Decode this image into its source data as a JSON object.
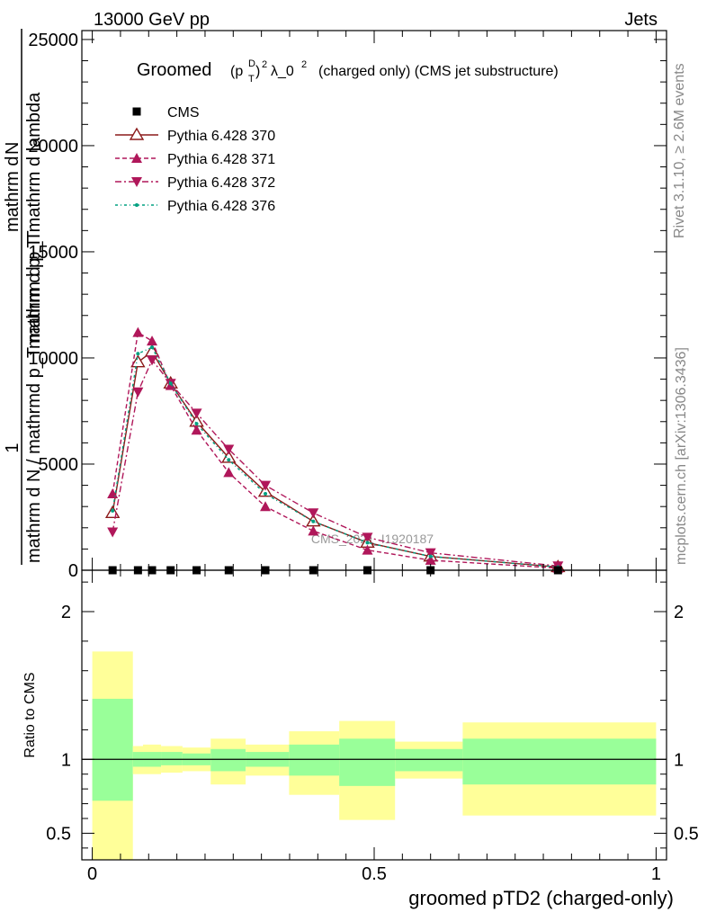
{
  "header": {
    "energy_label": "13000 GeV pp",
    "process_label": "Jets"
  },
  "side_labels": {
    "rivet": "Rivet 3.1.10, ≥ 2.6M events",
    "mcplots": "mcplots.cern.ch [arXiv:1306.3436]"
  },
  "watermark": "CMS_2021_I1920187",
  "chart_data": [
    {
      "type": "line",
      "title_parts": {
        "prefix": "Groomed",
        "p": "(p",
        "sup": "D",
        "sub": "T",
        "close": ")",
        "sq": "2",
        "lam": "λ_0",
        "lamsq": "2",
        "suffix": "(charged only) (CMS jet substructure)"
      },
      "ylabel_parts": {
        "one": "1",
        "den": "mathrm d N / mathrmd p_T mathrm d p_T",
        "num": "mathrm d",
        "num2": "N",
        "den2": "mathrm d p_T mathrm d lambda"
      },
      "xlim": [
        0,
        1
      ],
      "ylim": [
        0,
        25000
      ],
      "yticks": [
        {
          "v": 0,
          "label": "0"
        },
        {
          "v": 5000,
          "label": "5000"
        },
        {
          "v": 10000,
          "label": "10000"
        },
        {
          "v": 15000,
          "label": "15000"
        },
        {
          "v": 20000,
          "label": "20000"
        },
        {
          "v": 25000,
          "label": "25000"
        }
      ],
      "legend_position": "top-left",
      "x": [
        0.036,
        0.081,
        0.106,
        0.139,
        0.185,
        0.242,
        0.307,
        0.392,
        0.488,
        0.6,
        0.826
      ],
      "series": [
        {
          "name": "CMS",
          "marker": "square",
          "color": "#000000",
          "values": [
            0,
            0,
            0,
            0,
            0,
            0,
            0,
            0,
            0,
            0,
            0
          ]
        },
        {
          "name": "Pythia 6.428 370",
          "marker": "triangle-open",
          "color": "#8b1a1a",
          "dash": "",
          "values": [
            2700,
            9800,
            10300,
            8800,
            7000,
            5300,
            3700,
            2300,
            1300,
            650,
            150
          ]
        },
        {
          "name": "Pythia 6.428 371",
          "marker": "triangle-up",
          "color": "#b0175a",
          "dash": "5,3",
          "values": [
            3600,
            11200,
            10800,
            8700,
            6600,
            4600,
            3000,
            1850,
            950,
            470,
            100
          ]
        },
        {
          "name": "Pythia 6.428 372",
          "marker": "triangle-down",
          "color": "#b0175a",
          "dash": "7,3,2,3",
          "values": [
            1800,
            8400,
            9900,
            8800,
            7400,
            5700,
            4000,
            2700,
            1550,
            820,
            200
          ]
        },
        {
          "name": "Pythia 6.428 376",
          "marker": "dot",
          "color": "#00a080",
          "dash": "3,3,1,3",
          "values": [
            2800,
            10200,
            10500,
            8800,
            6900,
            5200,
            3600,
            2300,
            1300,
            650,
            150
          ]
        }
      ]
    },
    {
      "type": "area",
      "ylabel": "Ratio to CMS",
      "xlabel": "groomed pTD2 (charged-only)",
      "xlim": [
        0,
        1
      ],
      "ylim": [
        0.32,
        2.28
      ],
      "xticks": [
        {
          "v": 0,
          "label": "0"
        },
        {
          "v": 0.5,
          "label": "0.5"
        },
        {
          "v": 1,
          "label": "1"
        }
      ],
      "yticks": [
        {
          "v": 0.5,
          "label": "0.5"
        },
        {
          "v": 1,
          "label": "1"
        },
        {
          "v": 2,
          "label": "2"
        }
      ],
      "bins": [
        {
          "lo": 0.0,
          "hi": 0.072,
          "tot_lo": 0.3,
          "tot_hi": 1.73,
          "stat_lo": 0.72,
          "stat_hi": 1.41
        },
        {
          "lo": 0.072,
          "hi": 0.09,
          "tot_lo": 0.9,
          "tot_hi": 1.09,
          "stat_lo": 0.95,
          "stat_hi": 1.05
        },
        {
          "lo": 0.09,
          "hi": 0.122,
          "tot_lo": 0.9,
          "tot_hi": 1.1,
          "stat_lo": 0.95,
          "stat_hi": 1.05
        },
        {
          "lo": 0.122,
          "hi": 0.16,
          "tot_lo": 0.91,
          "tot_hi": 1.09,
          "stat_lo": 0.96,
          "stat_hi": 1.05
        },
        {
          "lo": 0.16,
          "hi": 0.21,
          "tot_lo": 0.92,
          "tot_hi": 1.08,
          "stat_lo": 0.96,
          "stat_hi": 1.04
        },
        {
          "lo": 0.21,
          "hi": 0.272,
          "tot_lo": 0.83,
          "tot_hi": 1.14,
          "stat_lo": 0.92,
          "stat_hi": 1.07
        },
        {
          "lo": 0.272,
          "hi": 0.349,
          "tot_lo": 0.89,
          "tot_hi": 1.1,
          "stat_lo": 0.95,
          "stat_hi": 1.05
        },
        {
          "lo": 0.349,
          "hi": 0.438,
          "tot_lo": 0.76,
          "tot_hi": 1.19,
          "stat_lo": 0.89,
          "stat_hi": 1.1
        },
        {
          "lo": 0.438,
          "hi": 0.537,
          "tot_lo": 0.59,
          "tot_hi": 1.26,
          "stat_lo": 0.82,
          "stat_hi": 1.14
        },
        {
          "lo": 0.537,
          "hi": 0.657,
          "tot_lo": 0.87,
          "tot_hi": 1.12,
          "stat_lo": 0.92,
          "stat_hi": 1.07
        },
        {
          "lo": 0.657,
          "hi": 1.0,
          "tot_lo": 0.62,
          "tot_hi": 1.25,
          "stat_lo": 0.83,
          "stat_hi": 1.14
        }
      ],
      "colors": {
        "total": "#ffff99",
        "stat": "#99ff99"
      }
    }
  ]
}
